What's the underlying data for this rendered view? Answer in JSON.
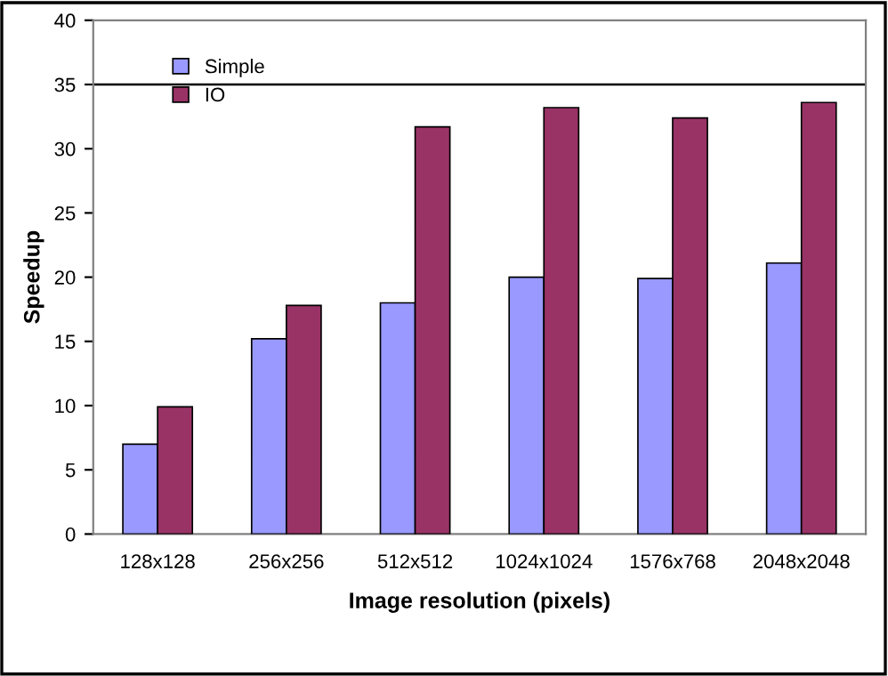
{
  "chart_data": {
    "type": "bar",
    "xlabel": "Image resolution (pixels)",
    "ylabel": "Speedup",
    "categories": [
      "128x128",
      "256x256",
      "512x512",
      "1024x1024",
      "1576x768",
      "2048x2048"
    ],
    "series": [
      {
        "name": "Simple",
        "color": "#9999ff",
        "values": [
          7.0,
          15.2,
          18.0,
          20.0,
          19.9,
          21.1
        ]
      },
      {
        "name": "IO",
        "color": "#993366",
        "values": [
          9.9,
          17.8,
          31.7,
          33.2,
          32.4,
          33.6
        ]
      }
    ],
    "ylim": [
      0,
      40
    ],
    "yticks": [
      0,
      5,
      10,
      15,
      20,
      25,
      30,
      35,
      40
    ],
    "ref_lines": [
      {
        "axis": "y",
        "value": 35,
        "color": "#000000"
      }
    ],
    "grid": false,
    "legend": "top left"
  }
}
